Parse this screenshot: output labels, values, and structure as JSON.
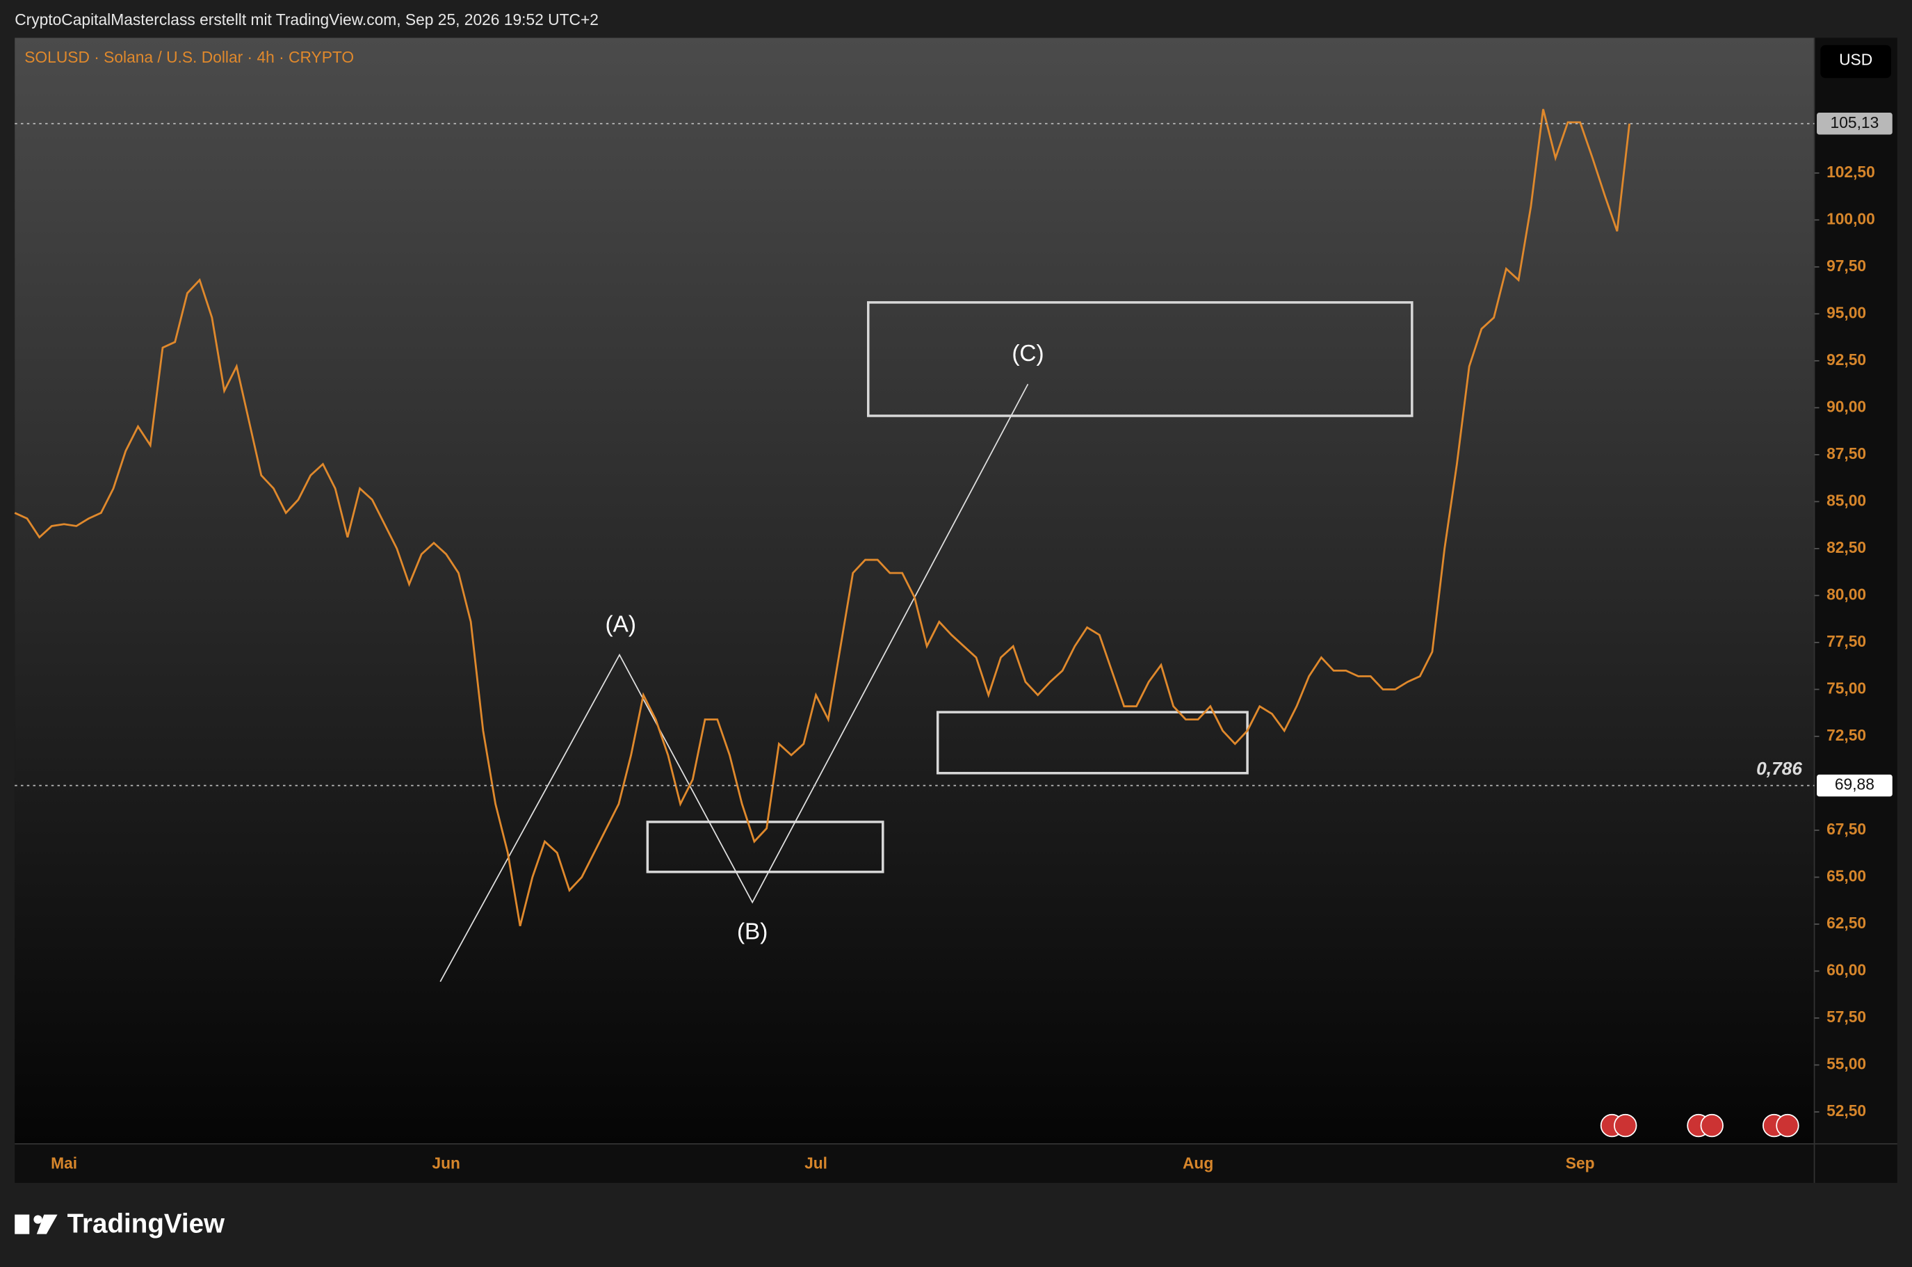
{
  "header": "CryptoCapitalMasterclass erstellt mit TradingView.com, Sep 25, 2026 19:52 UTC+2",
  "brand": "TradingView",
  "chart_data": {
    "type": "line",
    "title": "SOLUSD · Solana / U.S. Dollar · 4h · CRYPTO",
    "currency": "USD",
    "color": "#e0892c",
    "categories": [
      null,
      null,
      null,
      null,
      "Mai",
      null,
      null,
      null,
      null,
      null,
      null,
      null,
      null,
      null,
      null,
      null,
      null,
      null,
      null,
      null,
      null,
      null,
      null,
      null,
      null,
      null,
      null,
      null,
      null,
      null,
      null,
      null,
      null,
      null,
      null,
      "Jun",
      null,
      null,
      null,
      null,
      null,
      null,
      null,
      null,
      null,
      null,
      null,
      null,
      null,
      null,
      null,
      null,
      null,
      null,
      null,
      null,
      null,
      null,
      null,
      null,
      null,
      null,
      null,
      null,
      null,
      "Jul",
      null,
      null,
      null,
      null,
      null,
      null,
      null,
      null,
      null,
      null,
      null,
      null,
      null,
      null,
      null,
      null,
      null,
      null,
      null,
      null,
      null,
      null,
      null,
      null,
      null,
      null,
      null,
      null,
      null,
      null,
      "Aug",
      null,
      null,
      null,
      null,
      null,
      null,
      null,
      null,
      null,
      null,
      null,
      null,
      null,
      null,
      null,
      null,
      null,
      null,
      null,
      null,
      null,
      null,
      null,
      null,
      null,
      null,
      null,
      null,
      null,
      null,
      "Sep",
      null,
      null,
      null,
      null,
      null,
      null,
      null,
      null,
      null,
      null,
      null,
      null,
      null,
      null,
      null,
      null,
      null,
      null
    ],
    "values": [
      84.4,
      84.1,
      83.1,
      83.7,
      83.8,
      83.7,
      84.1,
      84.4,
      85.7,
      87.7,
      89.0,
      88.0,
      93.2,
      93.5,
      96.1,
      96.8,
      94.8,
      90.9,
      92.2,
      89.3,
      86.4,
      85.7,
      84.4,
      85.1,
      86.4,
      87.0,
      85.7,
      83.1,
      85.7,
      85.1,
      83.8,
      82.5,
      80.6,
      82.2,
      82.8,
      82.2,
      81.2,
      78.6,
      72.8,
      68.9,
      66.3,
      62.4,
      65.0,
      66.9,
      66.3,
      64.3,
      65.0,
      66.3,
      67.6,
      68.9,
      71.5,
      74.7,
      73.4,
      71.5,
      68.9,
      70.2,
      73.4,
      73.4,
      71.5,
      68.9,
      66.9,
      67.6,
      72.1,
      71.5,
      72.1,
      74.7,
      73.4,
      77.3,
      81.2,
      81.9,
      81.9,
      81.2,
      81.2,
      79.9,
      77.3,
      78.6,
      77.9,
      77.3,
      76.7,
      74.7,
      76.7,
      77.3,
      75.4,
      74.7,
      75.4,
      76.0,
      77.3,
      78.3,
      77.9,
      76.0,
      74.1,
      74.1,
      75.4,
      76.3,
      74.1,
      73.4,
      73.4,
      74.1,
      72.8,
      72.1,
      72.8,
      74.1,
      73.7,
      72.8,
      74.1,
      75.7,
      76.7,
      76.0,
      76.0,
      75.7,
      75.7,
      75.0,
      75.0,
      75.4,
      75.7,
      77.0,
      82.5,
      87.0,
      92.2,
      94.2,
      94.8,
      97.4,
      96.8,
      100.7,
      105.9,
      103.3,
      105.2,
      105.2,
      103.3,
      101.3,
      99.4,
      105.13,
      null,
      null,
      null,
      null,
      null,
      null,
      null,
      null,
      null,
      null,
      null,
      null,
      null,
      null
    ],
    "ylim": [
      50.8,
      109.7
    ],
    "yticks": [
      {
        "value": 52.5,
        "label": "52,50"
      },
      {
        "value": 55,
        "label": "55,00"
      },
      {
        "value": 57.5,
        "label": "57,50"
      },
      {
        "value": 60,
        "label": "60,00"
      },
      {
        "value": 62.5,
        "label": "62,50"
      },
      {
        "value": 65,
        "label": "65,00"
      },
      {
        "value": 67.5,
        "label": "67,50"
      },
      {
        "value": 72.5,
        "label": "72,50"
      },
      {
        "value": 75,
        "label": "75,00"
      },
      {
        "value": 77.5,
        "label": "77,50"
      },
      {
        "value": 80,
        "label": "80,00"
      },
      {
        "value": 82.5,
        "label": "82,50"
      },
      {
        "value": 85,
        "label": "85,00"
      },
      {
        "value": 87.5,
        "label": "87,50"
      },
      {
        "value": 90,
        "label": "90,00"
      },
      {
        "value": 92.5,
        "label": "92,50"
      },
      {
        "value": 95,
        "label": "95,00"
      },
      {
        "value": 97.5,
        "label": "97,50"
      },
      {
        "value": 100,
        "label": "100,00"
      },
      {
        "value": 102.5,
        "label": "102,50"
      }
    ],
    "price_lines": [
      {
        "value": 105.13,
        "label": "105,13"
      },
      {
        "value": 69.88,
        "label": "69,88"
      }
    ],
    "fib_label": "0,786",
    "wave_labels": [
      "(A)",
      "(B)",
      "(C)"
    ]
  }
}
